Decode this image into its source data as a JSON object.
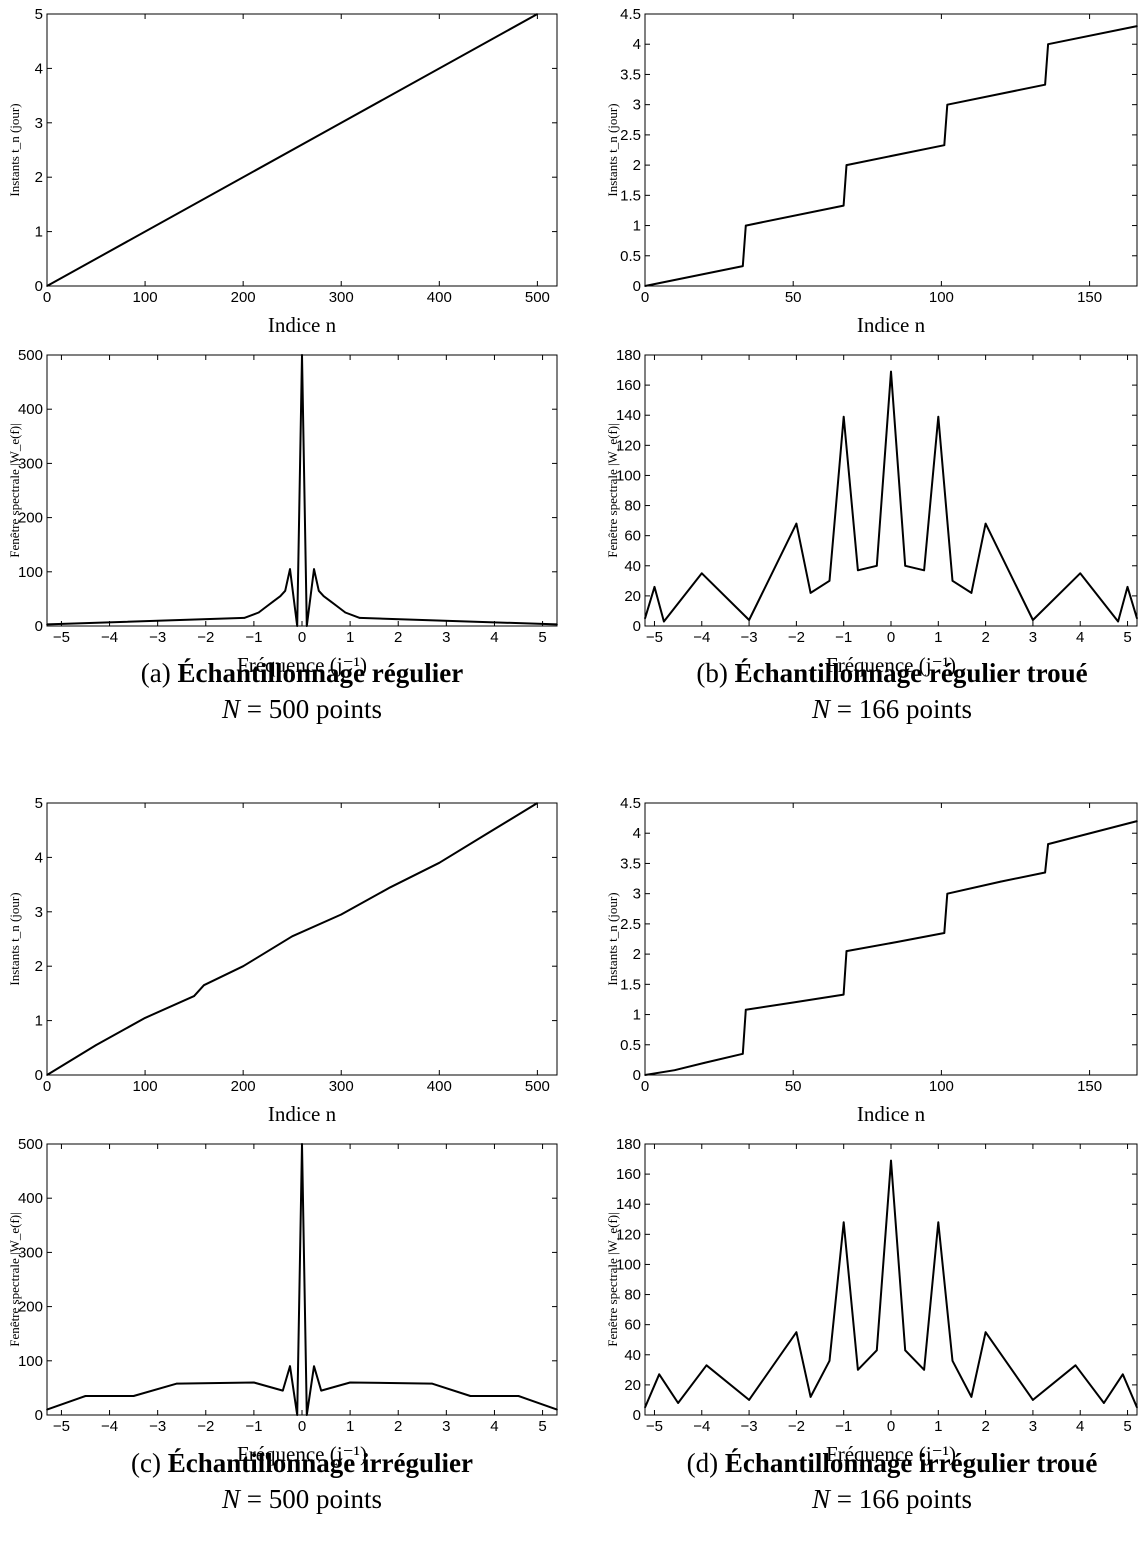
{
  "captions": [
    {
      "prefix": "(a) ",
      "title": "Échantillonnage régulier",
      "n_var": "N",
      "n_eq": " = ",
      "n_val": "500",
      "n_unit": " points"
    },
    {
      "prefix": "(b) ",
      "title": "Échantillonnage régulier troué",
      "n_var": "N",
      "n_eq": " = ",
      "n_val": "166",
      "n_unit": " points"
    },
    {
      "prefix": "(c) ",
      "title": "Échantillonnage irrégulier",
      "n_var": "N",
      "n_eq": " = ",
      "n_val": "500",
      "n_unit": " points"
    },
    {
      "prefix": "(d) ",
      "title": "Échantillonnage irrégulier troué",
      "n_var": "N",
      "n_eq": " = ",
      "n_val": "166",
      "n_unit": " points"
    }
  ],
  "chart_data": [
    {
      "type": "line",
      "panel": "a-top",
      "xlabel": "Indice n",
      "ylabel": "Instants t_n (jour)",
      "xlim": [
        0,
        520
      ],
      "ylim": [
        0,
        5
      ],
      "xticks": [
        0,
        100,
        200,
        300,
        400,
        500
      ],
      "yticks": [
        0,
        1,
        2,
        3,
        4,
        5
      ],
      "x": [
        0,
        500
      ],
      "y": [
        0,
        5
      ]
    },
    {
      "type": "line",
      "panel": "b-top",
      "xlabel": "Indice n",
      "ylabel": "Instants t_n (jour)",
      "xlim": [
        0,
        166
      ],
      "ylim": [
        0,
        4.5
      ],
      "xticks": [
        0,
        50,
        100,
        150
      ],
      "yticks": [
        0,
        0.5,
        1,
        1.5,
        2,
        2.5,
        3,
        3.5,
        4,
        4.5
      ],
      "x": [
        0,
        33,
        34,
        67,
        68,
        101,
        102,
        135,
        136,
        166
      ],
      "y": [
        0,
        0.33,
        1.0,
        1.33,
        2.0,
        2.33,
        3.0,
        3.33,
        4.0,
        4.3
      ]
    },
    {
      "type": "line",
      "panel": "a-bottom",
      "xlabel": "Fréquence (j⁻¹)",
      "ylabel": "Fenêtre spectrale |W_e(f)|",
      "xlim": [
        -5.3,
        5.3
      ],
      "ylim": [
        0,
        500
      ],
      "xticks": [
        -5,
        -4,
        -3,
        -2,
        -1,
        0,
        1,
        2,
        3,
        4,
        5
      ],
      "yticks": [
        0,
        100,
        200,
        300,
        400,
        500
      ],
      "x": [
        -5.3,
        -1.2,
        -0.9,
        -0.75,
        -0.6,
        -0.45,
        -0.35,
        -0.25,
        -0.1,
        0,
        0.1,
        0.25,
        0.35,
        0.45,
        0.6,
        0.75,
        0.9,
        1.2,
        5.3
      ],
      "y": [
        3,
        15,
        25,
        35,
        45,
        55,
        65,
        105,
        0,
        500,
        0,
        105,
        65,
        55,
        45,
        35,
        25,
        15,
        3
      ]
    },
    {
      "type": "line",
      "panel": "b-bottom",
      "xlabel": "Fréquence (j⁻¹)",
      "ylabel": "Fenêtre spectrale |W_e(f)|",
      "xlim": [
        -5.2,
        5.2
      ],
      "ylim": [
        0,
        180
      ],
      "xticks": [
        -5,
        -4,
        -3,
        -2,
        -1,
        0,
        1,
        2,
        3,
        4,
        5
      ],
      "yticks": [
        0,
        20,
        40,
        60,
        80,
        100,
        120,
        140,
        160,
        180
      ],
      "x": [
        -5.2,
        -5.0,
        -4.8,
        -4.0,
        -3.0,
        -2.0,
        -1.7,
        -1.3,
        -1.0,
        -0.7,
        -0.3,
        0,
        0.3,
        0.7,
        1.0,
        1.3,
        1.7,
        2.0,
        3.0,
        4.0,
        4.8,
        5.0,
        5.2
      ],
      "y": [
        5,
        26,
        3,
        35,
        4,
        68,
        22,
        30,
        139,
        37,
        40,
        169,
        40,
        37,
        139,
        30,
        22,
        68,
        4,
        35,
        3,
        26,
        5
      ]
    },
    {
      "type": "line",
      "panel": "c-top",
      "xlabel": "Indice n",
      "ylabel": "Instants t_n (jour)",
      "xlim": [
        0,
        520
      ],
      "ylim": [
        0,
        5
      ],
      "xticks": [
        0,
        100,
        200,
        300,
        400,
        500
      ],
      "yticks": [
        0,
        1,
        2,
        3,
        4,
        5
      ],
      "x": [
        0,
        50,
        100,
        150,
        160,
        200,
        250,
        300,
        350,
        400,
        450,
        500
      ],
      "y": [
        0,
        0.55,
        1.05,
        1.45,
        1.65,
        2.0,
        2.55,
        2.95,
        3.45,
        3.9,
        4.45,
        5.0
      ]
    },
    {
      "type": "line",
      "panel": "d-top",
      "xlabel": "Indice n",
      "ylabel": "Instants t_n (jour)",
      "xlim": [
        0,
        166
      ],
      "ylim": [
        0,
        4.5
      ],
      "xticks": [
        0,
        50,
        100,
        150
      ],
      "yticks": [
        0,
        0.5,
        1,
        1.5,
        2,
        2.5,
        3,
        3.5,
        4,
        4.5
      ],
      "x": [
        0,
        10,
        20,
        33,
        34,
        50,
        67,
        68,
        85,
        101,
        102,
        120,
        135,
        136,
        166
      ],
      "y": [
        0,
        0.08,
        0.2,
        0.35,
        1.08,
        1.2,
        1.33,
        2.05,
        2.2,
        2.35,
        3.0,
        3.2,
        3.35,
        3.82,
        4.2
      ]
    },
    {
      "type": "line",
      "panel": "c-bottom",
      "xlabel": "Fréquence (j⁻¹)",
      "ylabel": "Fenêtre spectrale |W_e(f)|",
      "xlim": [
        -5.3,
        5.3
      ],
      "ylim": [
        0,
        500
      ],
      "xticks": [
        -5,
        -4,
        -3,
        -2,
        -1,
        0,
        1,
        2,
        3,
        4,
        5
      ],
      "yticks": [
        0,
        100,
        200,
        300,
        400,
        500
      ],
      "x": [
        -5.3,
        -4.5,
        -3.5,
        -2.6,
        -1.0,
        -0.4,
        -0.25,
        -0.1,
        0,
        0.1,
        0.25,
        0.4,
        1.0,
        2.7,
        3.5,
        4.5,
        5.3
      ],
      "y": [
        10,
        35,
        35,
        58,
        60,
        45,
        90,
        0,
        500,
        0,
        90,
        45,
        60,
        58,
        35,
        35,
        10
      ]
    },
    {
      "type": "line",
      "panel": "d-bottom",
      "xlabel": "Fréquence (j⁻¹)",
      "ylabel": "Fenêtre spectrale |W_e(f)|",
      "xlim": [
        -5.2,
        5.2
      ],
      "ylim": [
        0,
        180
      ],
      "xticks": [
        -5,
        -4,
        -3,
        -2,
        -1,
        0,
        1,
        2,
        3,
        4,
        5
      ],
      "yticks": [
        0,
        20,
        40,
        60,
        80,
        100,
        120,
        140,
        160,
        180
      ],
      "x": [
        -5.2,
        -4.9,
        -4.5,
        -3.9,
        -3.0,
        -2.0,
        -1.7,
        -1.3,
        -1.0,
        -0.7,
        -0.3,
        0,
        0.3,
        0.7,
        1.0,
        1.3,
        1.7,
        2.0,
        3.0,
        3.9,
        4.5,
        4.9,
        5.2
      ],
      "y": [
        5,
        27,
        8,
        33,
        10,
        55,
        12,
        36,
        128,
        30,
        43,
        169,
        43,
        30,
        128,
        36,
        12,
        55,
        10,
        33,
        8,
        27,
        5
      ]
    }
  ]
}
